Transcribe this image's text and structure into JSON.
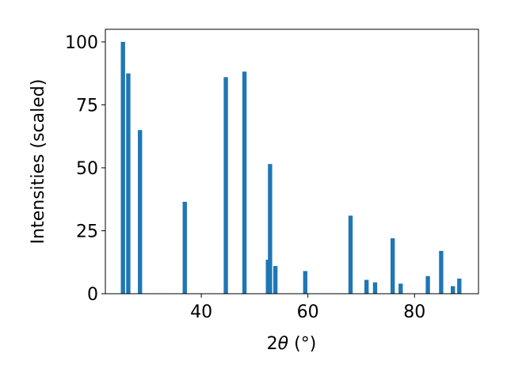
{
  "chart_data": {
    "type": "bar",
    "xlabel": "2θ (°)",
    "xlabel_parts": {
      "prefix": "2",
      "theta": "θ",
      "unit": " (°)"
    },
    "ylabel": "Intensities (scaled)",
    "xlim": [
      22,
      92
    ],
    "ylim": [
      0,
      105
    ],
    "xticks": [
      40,
      60,
      80
    ],
    "yticks": [
      0,
      25,
      50,
      75,
      100
    ],
    "bar_width": 0.8,
    "bar_color": "#1f77b4",
    "grid": false,
    "x": [
      25.3,
      26.3,
      28.5,
      36.9,
      44.6,
      48.1,
      52.5,
      52.9,
      53.9,
      59.5,
      68.0,
      71.0,
      72.6,
      75.9,
      77.4,
      82.5,
      85.0,
      87.2,
      88.4
    ],
    "values": [
      100,
      87.5,
      65,
      36.5,
      86,
      88.2,
      13.5,
      51.5,
      11,
      9,
      31,
      5.5,
      4.5,
      22,
      4,
      7,
      17,
      3,
      6
    ]
  }
}
